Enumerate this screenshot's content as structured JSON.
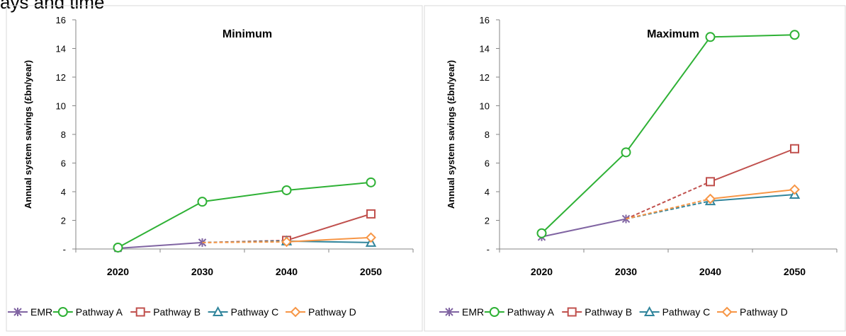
{
  "caption": "ays and time",
  "chart_data": [
    {
      "type": "line",
      "title": "Minimum",
      "ylabel": "Annual system savings (£bn/year)",
      "categories": [
        "2020",
        "2030",
        "2040",
        "2050"
      ],
      "ylim": [
        0,
        16
      ],
      "yticks": [
        "-",
        "2",
        "4",
        "6",
        "8",
        "10",
        "12",
        "14",
        "16"
      ],
      "grid": false,
      "legend_position": "bottom",
      "series": [
        {
          "name": "EMR",
          "color": "#8064a2",
          "marker": "star",
          "values": [
            0.05,
            0.45,
            null,
            null
          ],
          "dashed_from": null
        },
        {
          "name": "Pathway A",
          "color": "#2eb135",
          "marker": "circle",
          "values": [
            0.1,
            3.3,
            4.1,
            4.65
          ]
        },
        {
          "name": "Pathway B",
          "color": "#c0504d",
          "marker": "square",
          "values": [
            null,
            0.45,
            0.6,
            2.45
          ]
        },
        {
          "name": "Pathway C",
          "color": "#31859c",
          "marker": "triangle",
          "values": [
            null,
            0.45,
            0.55,
            0.45
          ]
        },
        {
          "name": "Pathway D",
          "color": "#f79646",
          "marker": "diamond",
          "values": [
            null,
            0.45,
            0.5,
            0.8
          ]
        }
      ]
    },
    {
      "type": "line",
      "title": "Maximum",
      "ylabel": "Annual system savings (£bn/year)",
      "categories": [
        "2020",
        "2030",
        "2040",
        "2050"
      ],
      "ylim": [
        0,
        16
      ],
      "yticks": [
        "-",
        "2",
        "4",
        "6",
        "8",
        "10",
        "12",
        "14",
        "16"
      ],
      "grid": false,
      "legend_position": "bottom",
      "series": [
        {
          "name": "EMR",
          "color": "#8064a2",
          "marker": "star",
          "values": [
            0.85,
            2.1,
            null,
            null
          ]
        },
        {
          "name": "Pathway A",
          "color": "#2eb135",
          "marker": "circle",
          "values": [
            1.1,
            6.75,
            14.8,
            14.95
          ]
        },
        {
          "name": "Pathway B",
          "color": "#c0504d",
          "marker": "square",
          "values": [
            null,
            2.1,
            4.7,
            7.0
          ]
        },
        {
          "name": "Pathway C",
          "color": "#31859c",
          "marker": "triangle",
          "values": [
            null,
            2.1,
            3.35,
            3.8
          ]
        },
        {
          "name": "Pathway D",
          "color": "#f79646",
          "marker": "diamond",
          "values": [
            null,
            2.1,
            3.5,
            4.15
          ]
        }
      ]
    }
  ]
}
